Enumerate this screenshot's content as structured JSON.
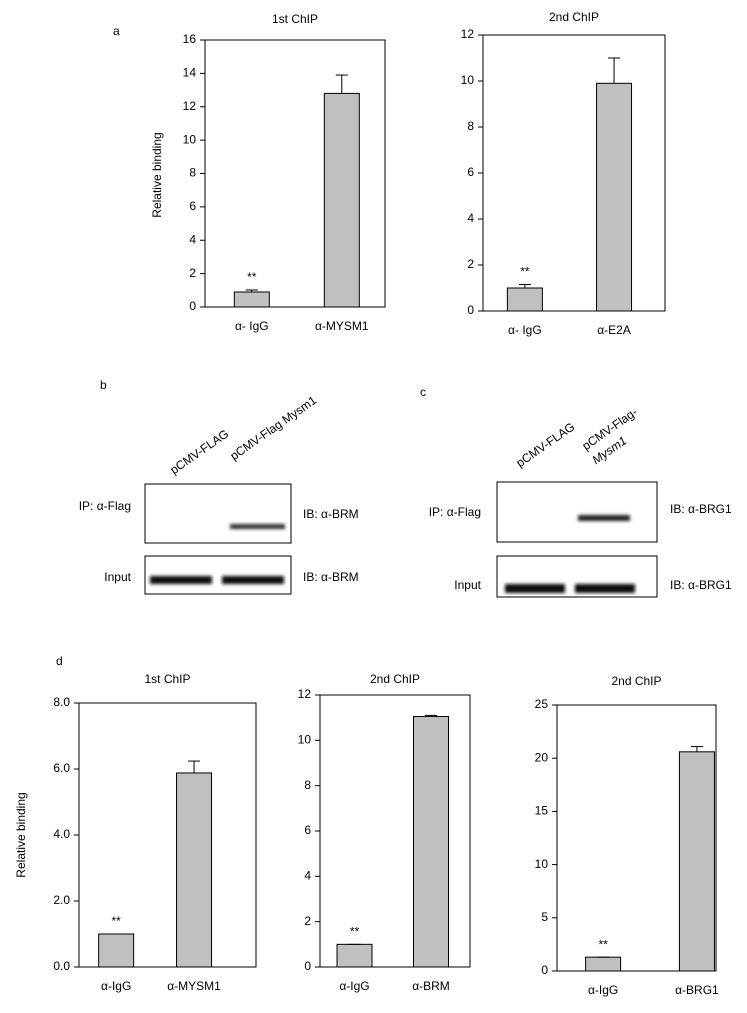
{
  "panel_labels": [
    "a",
    "b",
    "c",
    "d"
  ],
  "chart_data": [
    {
      "type": "bar",
      "title": "1st ChIP",
      "y_label": "Relative binding",
      "categories": [
        "α- IgG",
        "α-MYSM1"
      ],
      "values": [
        0.9,
        12.8
      ],
      "errors": [
        0.12,
        1.1
      ],
      "annotation": "**",
      "color": "#c0c0c0",
      "ylim": [
        0,
        16
      ],
      "yticks": [
        0,
        2,
        4,
        6,
        8,
        10,
        12,
        14,
        16
      ]
    },
    {
      "type": "bar",
      "title": "2nd ChIP",
      "categories": [
        "α- IgG",
        "α-E2A"
      ],
      "values": [
        1.0,
        9.9
      ],
      "errors": [
        0.15,
        1.1
      ],
      "annotation": "**",
      "color": "#c0c0c0",
      "ylim": [
        0,
        12
      ],
      "yticks": [
        0,
        2,
        4,
        6,
        8,
        10,
        12
      ]
    },
    {
      "type": "bar",
      "title": "1st ChIP",
      "y_label": "Relative binding",
      "categories": [
        "α-IgG",
        "α-MYSM1"
      ],
      "values": [
        1.0,
        5.88
      ],
      "errors": [
        0,
        0.36
      ],
      "annotation": "**",
      "color": "#c0c0c0",
      "ylim": [
        0,
        8
      ],
      "yticks": [
        {
          "value": 0,
          "label": "0.0"
        },
        {
          "value": 2,
          "label": "2.0"
        },
        {
          "value": 4,
          "label": "4.0"
        },
        {
          "value": 6,
          "label": "6.0"
        },
        {
          "value": 8,
          "label": "8.0"
        }
      ]
    },
    {
      "type": "bar",
      "title": "2nd ChIP",
      "categories": [
        "α-IgG",
        "α-BRM"
      ],
      "values": [
        1.0,
        11.05
      ],
      "errors": [
        0,
        0.05
      ],
      "annotation": "**",
      "color": "#c0c0c0",
      "ylim": [
        0,
        12
      ],
      "yticks": [
        0,
        2,
        4,
        6,
        8,
        10,
        12
      ]
    },
    {
      "type": "bar",
      "title": "2nd ChIP",
      "categories": [
        "α-IgG",
        "α-BRG1"
      ],
      "values": [
        1.3,
        20.6
      ],
      "errors": [
        0,
        0.5
      ],
      "annotation": "**",
      "color": "#c0c0c0",
      "ylim": [
        0,
        25
      ],
      "yticks": [
        0,
        5,
        10,
        15,
        20,
        25
      ]
    }
  ],
  "blots": [
    {
      "lanes": [
        [
          "pCMV-FLAG"
        ],
        [
          "pCMV-Flag Mysm1"
        ]
      ],
      "rows": [
        {
          "label": "IP: α-Flag",
          "ib": "IB: α-BRM"
        },
        {
          "label": "Input",
          "ib": "IB: α-BRM"
        }
      ]
    },
    {
      "lanes": [
        [
          "pCMV-FLAG"
        ],
        [
          "pCMV-Flag-",
          "Mysm1"
        ]
      ],
      "rows": [
        {
          "label": "IP: α-Flag",
          "ib": "IB: α-BRG1"
        },
        {
          "label": "Input",
          "ib": "IB: α-BRG1"
        }
      ]
    }
  ]
}
